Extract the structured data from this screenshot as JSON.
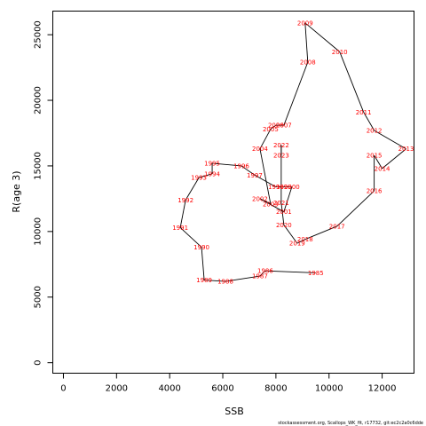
{
  "chart_data": {
    "type": "line",
    "xlabel": "SSB",
    "ylabel": "R(age 3)",
    "xlim": [
      -400,
      13200
    ],
    "ylim": [
      -800,
      26800
    ],
    "xticks": [
      0,
      2000,
      4000,
      6000,
      8000,
      10000,
      12000
    ],
    "yticks": [
      0,
      5000,
      10000,
      15000,
      20000,
      25000
    ],
    "line_color": "#000000",
    "label_color": "#ff0000",
    "points": [
      {
        "year": "1985",
        "x": 9500,
        "y": 6850
      },
      {
        "year": "1986",
        "x": 7600,
        "y": 7000
      },
      {
        "year": "1987",
        "x": 7400,
        "y": 6600
      },
      {
        "year": "1988",
        "x": 6100,
        "y": 6200
      },
      {
        "year": "1989",
        "x": 5300,
        "y": 6300
      },
      {
        "year": "1990",
        "x": 5200,
        "y": 8800
      },
      {
        "year": "1991",
        "x": 4400,
        "y": 10300
      },
      {
        "year": "1992",
        "x": 4600,
        "y": 12400
      },
      {
        "year": "1993",
        "x": 5100,
        "y": 14100
      },
      {
        "year": "1994",
        "x": 5600,
        "y": 14400
      },
      {
        "year": "1995",
        "x": 5600,
        "y": 15200
      },
      {
        "year": "1996",
        "x": 6700,
        "y": 15000
      },
      {
        "year": "1997",
        "x": 7200,
        "y": 14300
      },
      {
        "year": "1998",
        "x": 8000,
        "y": 13400
      },
      {
        "year": "1999",
        "x": 8300,
        "y": 13400
      },
      {
        "year": "2000",
        "x": 8600,
        "y": 13400
      },
      {
        "year": "2001",
        "x": 8300,
        "y": 11500
      },
      {
        "year": "2002",
        "x": 7400,
        "y": 12500
      },
      {
        "year": "2003",
        "x": 7800,
        "y": 12100
      },
      {
        "year": "2004",
        "x": 7400,
        "y": 16300
      },
      {
        "year": "2005",
        "x": 7800,
        "y": 17800
      },
      {
        "year": "2006",
        "x": 8000,
        "y": 18100
      },
      {
        "year": "2007",
        "x": 8300,
        "y": 18100
      },
      {
        "year": "2008",
        "x": 9200,
        "y": 22900
      },
      {
        "year": "2009",
        "x": 9100,
        "y": 25900
      },
      {
        "year": "2010",
        "x": 10400,
        "y": 23700
      },
      {
        "year": "2011",
        "x": 11300,
        "y": 19100
      },
      {
        "year": "2012",
        "x": 11700,
        "y": 17700
      },
      {
        "year": "2013",
        "x": 12900,
        "y": 16300
      },
      {
        "year": "2014",
        "x": 12000,
        "y": 14800
      },
      {
        "year": "2015",
        "x": 11700,
        "y": 15800
      },
      {
        "year": "2016",
        "x": 11700,
        "y": 13100
      },
      {
        "year": "2017",
        "x": 10300,
        "y": 10400
      },
      {
        "year": "2018",
        "x": 9100,
        "y": 9400
      },
      {
        "year": "2019",
        "x": 8800,
        "y": 9100
      },
      {
        "year": "2020",
        "x": 8300,
        "y": 10500
      },
      {
        "year": "2021",
        "x": 8200,
        "y": 12200
      },
      {
        "year": "2022",
        "x": 8200,
        "y": 16600
      },
      {
        "year": "2023",
        "x": 8200,
        "y": 15800
      }
    ]
  },
  "footnote": "stockassessment.org, Scallops_WK_fit, r17732, git:ec2c2a0c6dde"
}
